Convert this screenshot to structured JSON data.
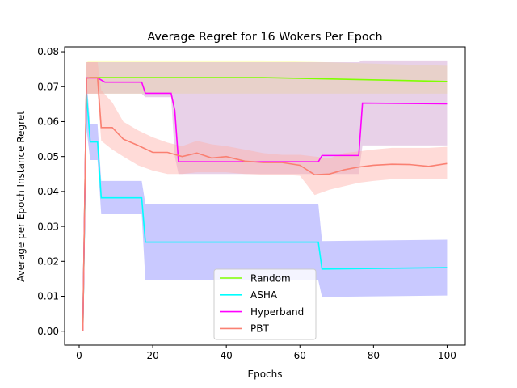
{
  "chart_data": {
    "type": "line",
    "title": "Average Regret for 16 Wokers Per Epoch",
    "xlabel": "Epochs",
    "ylabel": "Average per Epoch Instance Regret",
    "xlim": [
      -3.95,
      104.95
    ],
    "ylim": [
      -0.004,
      0.0814
    ],
    "xticks": [
      0,
      20,
      40,
      60,
      80,
      100
    ],
    "xtick_labels": [
      "0",
      "20",
      "40",
      "60",
      "80",
      "100"
    ],
    "yticks": [
      0,
      0.01,
      0.02,
      0.03,
      0.04,
      0.05,
      0.06,
      0.07,
      0.08
    ],
    "ytick_labels": [
      "0.00",
      "0.01",
      "0.02",
      "0.03",
      "0.04",
      "0.05",
      "0.06",
      "0.07",
      "0.08"
    ],
    "grid": false,
    "legend_position": "lower-center",
    "series": [
      {
        "name": "Random",
        "color": "#7fff00",
        "band_color": "#ffff88",
        "x": [
          1,
          2,
          3,
          50,
          100
        ],
        "y": [
          0.0,
          0.0725,
          0.0726,
          0.0726,
          0.0715
        ],
        "lower": [
          0.0,
          0.068,
          0.068,
          0.068,
          0.068
        ],
        "upper": [
          0.0,
          0.077,
          0.0775,
          0.0775,
          0.076
        ]
      },
      {
        "name": "ASHA",
        "color": "#00ffff",
        "band_color": "#8888ff",
        "x": [
          1,
          2,
          3,
          5,
          6,
          17,
          18,
          65,
          66,
          100
        ],
        "y": [
          0.0,
          0.068,
          0.0542,
          0.0542,
          0.0382,
          0.0382,
          0.0255,
          0.0255,
          0.0178,
          0.0182
        ],
        "lower": [
          0.0,
          0.058,
          0.049,
          0.049,
          0.0335,
          0.0335,
          0.0145,
          0.0145,
          0.0098,
          0.0102
        ],
        "upper": [
          0.0,
          0.072,
          0.0592,
          0.0592,
          0.043,
          0.043,
          0.0365,
          0.0365,
          0.0258,
          0.0262
        ]
      },
      {
        "name": "Hyperband",
        "color": "#ff00ff",
        "band_color": "#cc99cc",
        "x": [
          1,
          2,
          3,
          5,
          7,
          17,
          18,
          25,
          26,
          27,
          65,
          66,
          76,
          77,
          100
        ],
        "y": [
          0.0,
          0.0725,
          0.0725,
          0.0725,
          0.0713,
          0.0713,
          0.0681,
          0.0681,
          0.0632,
          0.0485,
          0.0485,
          0.0503,
          0.0503,
          0.0653,
          0.0651
        ],
        "lower": [
          0.0,
          0.068,
          0.068,
          0.068,
          0.068,
          0.068,
          0.067,
          0.067,
          0.05,
          0.045,
          0.045,
          0.045,
          0.045,
          0.0532,
          0.0532
        ],
        "upper": [
          0.0,
          0.077,
          0.077,
          0.077,
          0.077,
          0.077,
          0.077,
          0.077,
          0.077,
          0.077,
          0.077,
          0.077,
          0.077,
          0.0775,
          0.0775
        ]
      },
      {
        "name": "PBT",
        "color": "#fa8072",
        "band_color": "#ffb0a8",
        "x": [
          1,
          2,
          3,
          5,
          6,
          9,
          12,
          16,
          20,
          24,
          28,
          32,
          36,
          40,
          45,
          50,
          55,
          60,
          64,
          68,
          72,
          76,
          80,
          85,
          90,
          95,
          100
        ],
        "y": [
          0.0,
          0.0724,
          0.0726,
          0.0726,
          0.0583,
          0.0583,
          0.055,
          0.0532,
          0.0512,
          0.0512,
          0.05,
          0.051,
          0.0496,
          0.05,
          0.0487,
          0.0483,
          0.0483,
          0.0475,
          0.0448,
          0.045,
          0.0462,
          0.047,
          0.0475,
          0.0478,
          0.0477,
          0.0472,
          0.048
        ],
        "lower": [
          0.0,
          0.068,
          0.068,
          0.068,
          0.0545,
          0.052,
          0.05,
          0.0475,
          0.046,
          0.045,
          0.045,
          0.0455,
          0.0455,
          0.0455,
          0.045,
          0.0448,
          0.0448,
          0.0445,
          0.039,
          0.0405,
          0.0415,
          0.0425,
          0.043,
          0.0435,
          0.0435,
          0.0435,
          0.0435
        ],
        "upper": [
          0.0,
          0.077,
          0.077,
          0.077,
          0.069,
          0.0655,
          0.06,
          0.0575,
          0.0555,
          0.054,
          0.053,
          0.0545,
          0.0535,
          0.053,
          0.052,
          0.051,
          0.0505,
          0.0505,
          0.05,
          0.0495,
          0.051,
          0.0515,
          0.052,
          0.0525,
          0.0525,
          0.0525,
          0.0528
        ]
      }
    ]
  }
}
